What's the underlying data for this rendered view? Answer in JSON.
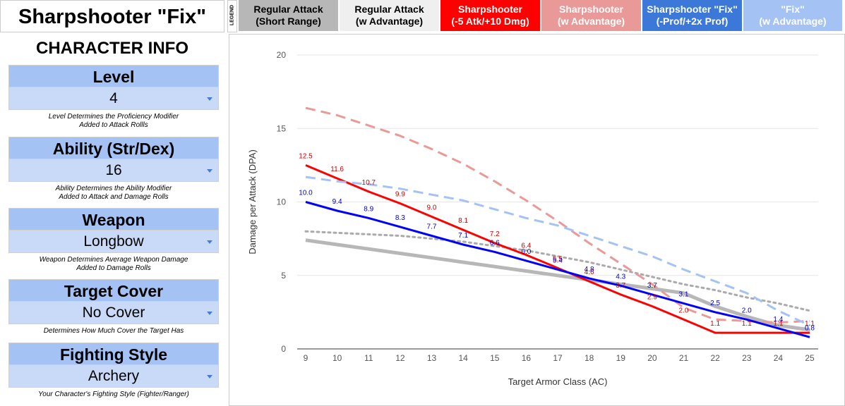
{
  "app_title": "Sharpshooter \"Fix\"",
  "info_title": "CHARACTER INFO",
  "character_info": [
    {
      "label": "Level",
      "value": "4",
      "note": [
        "Level Determines the Proficiency Modifier",
        "Added to Attack Rollls"
      ]
    },
    {
      "label": "Ability (Str/Dex)",
      "value": "16",
      "note": [
        "Ability Determines the Ability Modifier",
        "Added to Attack and Damage Rolls"
      ]
    },
    {
      "label": "Weapon",
      "value": "Longbow",
      "note": [
        "Weapon Determines Average Weapon Damage",
        "Added to Damage Rolls"
      ]
    },
    {
      "label": "Target Cover",
      "value": "No Cover",
      "note": [
        "Determines How Much Cover the Target Has"
      ]
    },
    {
      "label": "Fighting Style",
      "value": "Archery",
      "note": [
        "Your Character's Fighting Style (Fighter/Ranger)"
      ]
    }
  ],
  "legend_title": "LEGEND",
  "legend": [
    {
      "line1": "Regular Attack",
      "line2": "(Short Range)",
      "bg": "#b7b7b7",
      "fg": "#000000"
    },
    {
      "line1": "Regular Attack",
      "line2": "(w Advantage)",
      "bg": "#efefef",
      "fg": "#000000"
    },
    {
      "line1": "Sharpshooter",
      "line2": "(-5 Atk/+10 Dmg)",
      "bg": "#ff0000",
      "fg": "#ffffff"
    },
    {
      "line1": "Sharpshooter",
      "line2": "(w Advantage)",
      "bg": "#ea9999",
      "fg": "#ffffff"
    },
    {
      "line1": "Sharpshooter \"Fix\"",
      "line2": "(-Prof/+2x Prof)",
      "bg": "#3c78d8",
      "fg": "#ffffff"
    },
    {
      "line1": "\"Fix\"",
      "line2": "(w Advantage)",
      "bg": "#a4c2f4",
      "fg": "#ffffff"
    }
  ],
  "chart_data": {
    "type": "line",
    "xlabel": "Target Armor Class (AC)",
    "ylabel": "Damage per Attack (DPA)",
    "x": [
      9,
      10,
      11,
      12,
      13,
      14,
      15,
      16,
      17,
      18,
      19,
      20,
      21,
      22,
      23,
      24,
      25
    ],
    "xlim": [
      9,
      25
    ],
    "ylim": [
      0,
      20
    ],
    "yticks": [
      0,
      5,
      10,
      15,
      20
    ],
    "grid": "horizontal",
    "series": [
      {
        "key": "regular",
        "color": "#b7b7b7",
        "dash": "solid",
        "width": 5,
        "values": [
          7.4,
          7.1,
          6.8,
          6.5,
          6.2,
          5.9,
          5.6,
          5.3,
          5.0,
          4.7,
          4.4,
          4.1,
          3.8,
          2.9,
          2.2,
          1.6,
          1.3
        ]
      },
      {
        "key": "regular_adv",
        "color": "#aaaaaa",
        "dash": "dotted",
        "width": 3,
        "values": [
          8.0,
          7.9,
          7.8,
          7.7,
          7.5,
          7.3,
          7.0,
          6.7,
          6.3,
          5.9,
          5.4,
          4.9,
          4.4,
          4.0,
          3.5,
          3.1,
          2.6
        ]
      },
      {
        "key": "sharpshooter",
        "color": "#ff0000",
        "dash": "solid",
        "width": 3,
        "values": [
          12.5,
          11.6,
          10.7,
          9.9,
          9.0,
          8.1,
          7.2,
          6.4,
          5.5,
          4.6,
          3.7,
          2.9,
          2.0,
          1.1,
          1.1,
          1.1,
          1.1
        ]
      },
      {
        "key": "sharpshooter_adv",
        "color": "#ea9999",
        "dash": "dashed",
        "width": 3,
        "values": [
          16.4,
          15.9,
          15.2,
          14.5,
          13.6,
          12.6,
          11.4,
          10.1,
          8.7,
          7.2,
          5.8,
          4.4,
          2.8,
          2.0,
          1.9,
          1.8,
          1.9
        ]
      },
      {
        "key": "fix",
        "color": "#0000ff",
        "dash": "solid",
        "width": 3,
        "values": [
          10.0,
          9.4,
          8.9,
          8.3,
          7.7,
          7.1,
          6.6,
          6.0,
          5.4,
          4.8,
          4.3,
          3.7,
          3.1,
          2.5,
          2.0,
          1.4,
          0.8
        ]
      },
      {
        "key": "fix_adv",
        "color": "#a4c2f4",
        "dash": "dashed",
        "width": 3,
        "values": [
          11.7,
          11.4,
          11.2,
          10.9,
          10.5,
          10.1,
          9.5,
          8.9,
          8.4,
          7.7,
          7.0,
          6.3,
          5.4,
          4.6,
          3.8,
          2.6,
          1.6
        ]
      }
    ],
    "data_labels": [
      {
        "series": "sharpshooter",
        "color": "#cc0000",
        "values": [
          "12.5",
          "11.6",
          "10.7",
          "9.9",
          "9.0",
          "8.1",
          "7.2",
          "6.4",
          "5.5",
          "4.6",
          "3.7",
          "2.9",
          "2.0",
          "1.1",
          "1.1",
          "1.1",
          "1.1"
        ]
      },
      {
        "series": "fix",
        "color": "#0000cc",
        "values": [
          "10.0",
          "9.4",
          "8.9",
          "8.3",
          "7.7",
          "7.1",
          "6.6",
          "6.0",
          "5.4",
          "4.8",
          "4.3",
          "3.7",
          "3.1",
          "2.5",
          "2.0",
          "1.4",
          "0.8"
        ]
      }
    ]
  }
}
